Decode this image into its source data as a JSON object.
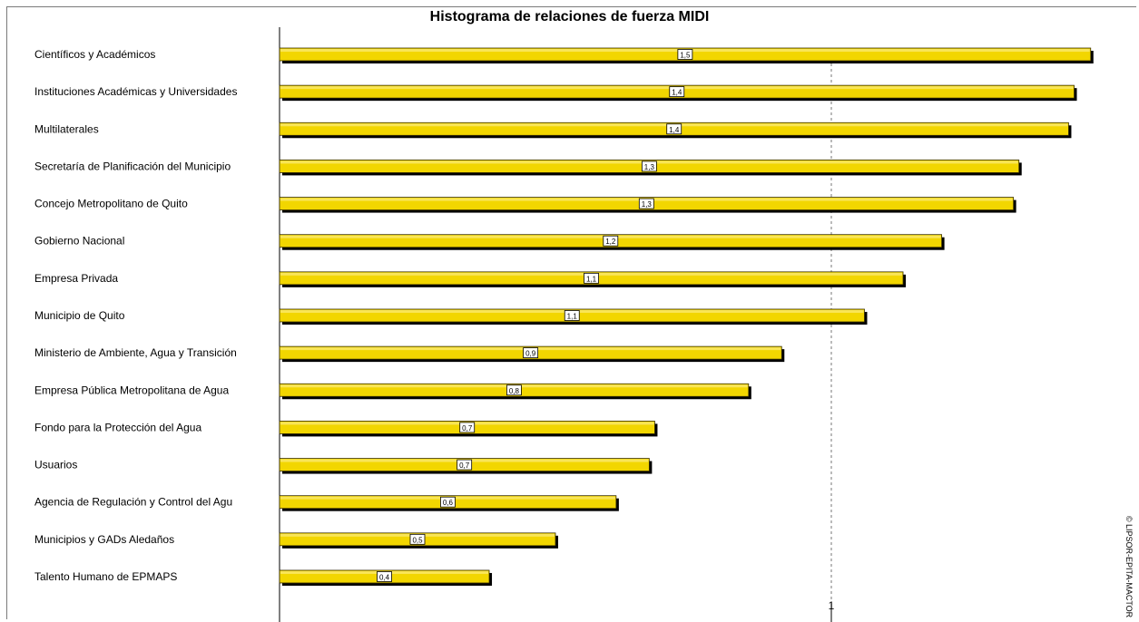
{
  "chart_data": {
    "type": "bar",
    "orientation": "horizontal",
    "title": "Histograma de relaciones de fuerza MIDI",
    "categories": [
      "Científicos y Académicos",
      "Instituciones Académicas y Universidades",
      "Multilaterales",
      "Secretaría de Planificación del Municipio",
      "Concejo Metropolitano de Quito",
      "Gobierno Nacional",
      "Empresa Privada",
      "Municipio de Quito",
      "Ministerio de Ambiente, Agua y Transición",
      "Empresa Pública Metropolitana de Agua",
      "Fondo para la Protección del Agua",
      "Usuarios",
      "Agencia de Regulación y Control del Agu",
      "Municipios y GADs Aledaños",
      "Talento Humano de EPMAPS"
    ],
    "values": [
      1.47,
      1.44,
      1.43,
      1.34,
      1.33,
      1.2,
      1.13,
      1.06,
      0.91,
      0.85,
      0.68,
      0.67,
      0.61,
      0.5,
      0.38
    ],
    "value_labels": [
      "1,5",
      "1,4",
      "1,4",
      "1,3",
      "1,3",
      "1,2",
      "1,1",
      "1,1",
      "0,9",
      "0,8",
      "0,7",
      "0,7",
      "0,6",
      "0,5",
      "0,4"
    ],
    "x_ticks": [
      "1"
    ],
    "xlim": [
      0,
      1.5
    ],
    "grid": "vertical dashed line at 1",
    "legend": "none",
    "bar_color": "#f2d600",
    "bar_border_color": "#3a3000",
    "shadow_color": "#000000"
  },
  "copyright": "© LIPSOR-EPITA-MACTOR"
}
